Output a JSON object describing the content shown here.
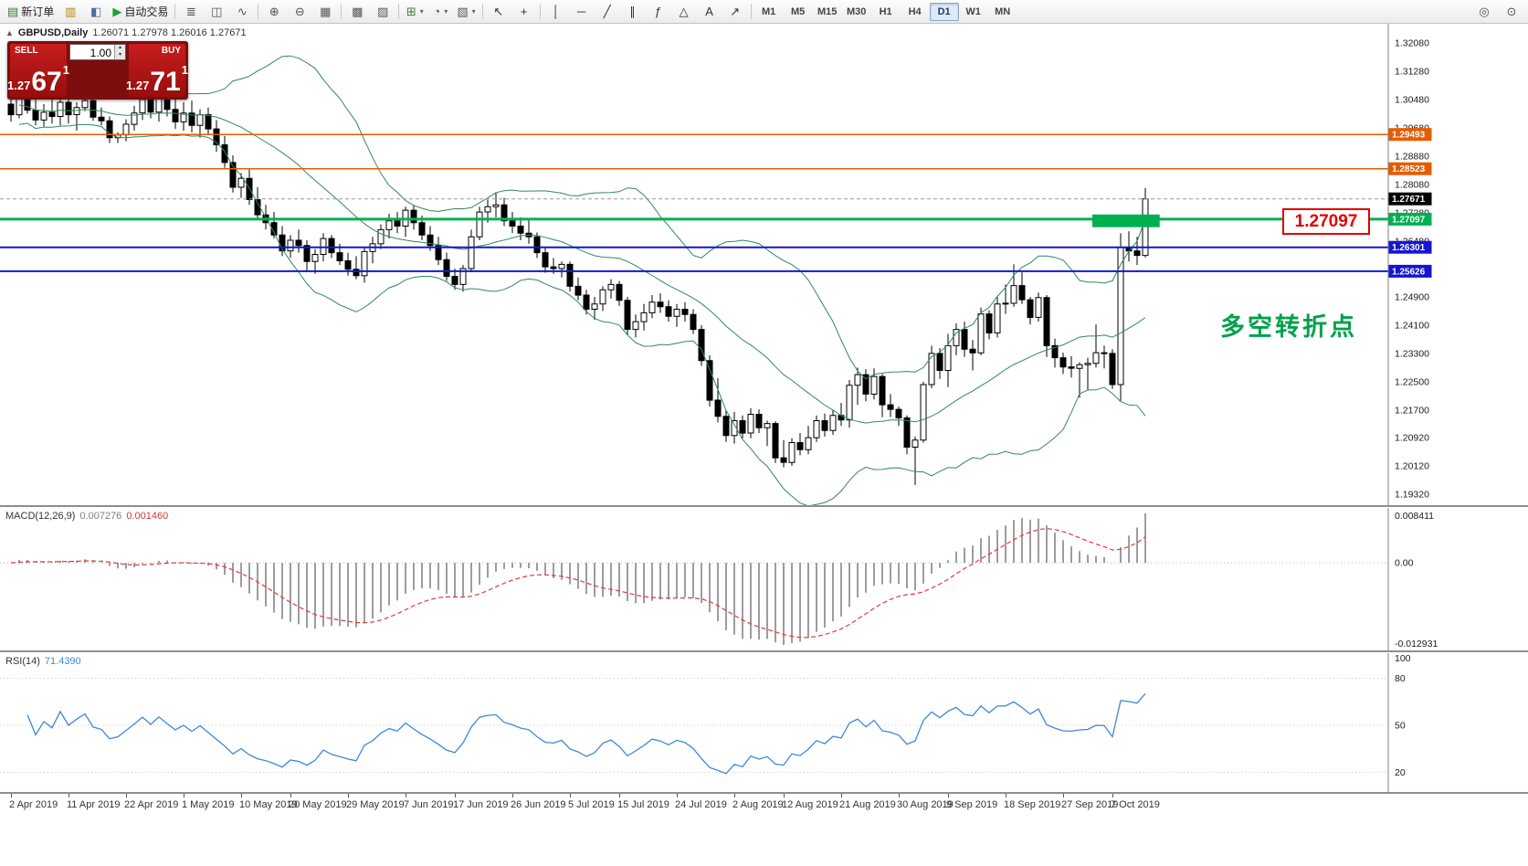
{
  "toolbar": {
    "items": [
      {
        "name": "new-order-button",
        "glyph": "▤",
        "label": "新订单",
        "color": "#2f7d32"
      },
      {
        "name": "chart-window-icon",
        "glyph": "▥",
        "color": "#b8860b"
      },
      {
        "name": "profiles-icon",
        "glyph": "◧",
        "color": "#4a6fa5"
      },
      {
        "name": "autotrading-button",
        "glyph": "▶",
        "label": "自动交易",
        "color": "#1d9e33"
      },
      {
        "divider": true
      },
      {
        "name": "bar-chart-icon",
        "glyph": "≣",
        "color": "#555555"
      },
      {
        "name": "candlestick-chart-icon",
        "glyph": "◫",
        "color": "#555555"
      },
      {
        "name": "line-chart-icon",
        "glyph": "∿",
        "color": "#555555"
      },
      {
        "divider": true
      },
      {
        "name": "zoom-in-icon",
        "glyph": "⊕",
        "color": "#555555"
      },
      {
        "name": "zoom-out-icon",
        "glyph": "⊖",
        "color": "#555555"
      },
      {
        "name": "tile-windows-icon",
        "glyph": "▦",
        "color": "#555555"
      },
      {
        "divider": true
      },
      {
        "name": "arrange-windows-icon",
        "glyph": "▩",
        "color": "#555555"
      },
      {
        "name": "cascade-windows-icon",
        "glyph": "▨",
        "color": "#555555"
      },
      {
        "divider": true
      },
      {
        "name": "indicators-button",
        "glyph": "⊞",
        "color": "#3a7d44",
        "dropdown": true
      },
      {
        "name": "periods-button",
        "glyph": "◔",
        "color": "#555555",
        "dropdown": true
      },
      {
        "name": "templates-button",
        "glyph": "▧",
        "color": "#555555",
        "dropdown": true
      },
      {
        "divider": true
      },
      {
        "name": "cursor-icon",
        "glyph": "↖",
        "color": "#333333"
      },
      {
        "name": "crosshair-icon",
        "glyph": "+",
        "color": "#333333"
      },
      {
        "divider": true
      },
      {
        "name": "vertical-line-icon",
        "glyph": "│",
        "color": "#333333"
      },
      {
        "name": "horizontal-line-icon",
        "glyph": "─",
        "color": "#333333"
      },
      {
        "name": "trendline-icon",
        "glyph": "╱",
        "color": "#333333"
      },
      {
        "name": "channel-icon",
        "glyph": "∥",
        "color": "#333333"
      },
      {
        "name": "fibonacci-icon",
        "glyph": "ƒ",
        "color": "#333333"
      },
      {
        "name": "shapes-icon",
        "glyph": "△",
        "color": "#333333"
      },
      {
        "name": "text-icon",
        "glyph": "A",
        "color": "#333333"
      },
      {
        "name": "arrow-tool-icon",
        "glyph": "↗",
        "color": "#333333"
      },
      {
        "divider": true
      }
    ],
    "timeframes": [
      "M1",
      "M5",
      "M15",
      "M30",
      "H1",
      "H4",
      "D1",
      "W1",
      "MN"
    ],
    "active_timeframe": "D1",
    "right_items": [
      {
        "name": "search-icon",
        "glyph": "◎",
        "color": "#555555"
      },
      {
        "name": "data-window-icon",
        "glyph": "⊙",
        "color": "#555555"
      }
    ]
  },
  "chart": {
    "title": "GBPUSD,Daily",
    "ohlc_text": "1.26071 1.27978 1.26016 1.27671",
    "trade_panel": {
      "sell_label": "SELL",
      "buy_label": "BUY",
      "volume": "1.00",
      "sell_price_head": "1.27",
      "sell_price_big": "67",
      "sell_price_sup": "1",
      "buy_price_head": "1.27",
      "buy_price_big": "71",
      "buy_price_sup": "1"
    },
    "annotation": "多空转折点",
    "price_box": "1.27097",
    "levels": [
      {
        "label": "1.29493",
        "price": 1.29493,
        "color": "#e65c00",
        "width": 1.5,
        "style": "solid"
      },
      {
        "label": "1.28523",
        "price": 1.28523,
        "color": "#e65c00",
        "width": 1.5,
        "style": "solid"
      },
      {
        "label": "1.27671",
        "price": 1.27671,
        "color": "#000000",
        "line_color": "#999999",
        "width": 1,
        "style": "dashed"
      },
      {
        "label": "1.27097",
        "price": 1.27097,
        "color": "#00b050",
        "width": 3,
        "style": "solid"
      },
      {
        "label": "1.26301",
        "price": 1.26301,
        "color": "#1616d1",
        "width": 2,
        "style": "solid"
      },
      {
        "label": "1.25626",
        "price": 1.25626,
        "color": "#1616d1",
        "width": 2,
        "style": "solid"
      }
    ],
    "zone": {
      "from_index": 132,
      "to_index": 139.3,
      "price_top": 1.2723,
      "price_bottom": 1.2687,
      "color": "#00b050"
    },
    "y_ticks": [
      "1.32080",
      "1.31280",
      "1.30480",
      "1.29680",
      "1.28880",
      "1.28080",
      "1.27280",
      "1.26480",
      "1.25680",
      "1.24900",
      "1.24100",
      "1.23300",
      "1.22500",
      "1.21700",
      "1.20920",
      "1.20120",
      "1.19320"
    ]
  },
  "macd": {
    "name": "MACD(12,26,9)",
    "value_main": "0.007276",
    "value_signal": "0.001460",
    "axis": [
      "0.008411",
      "0.00",
      "-0.012931"
    ]
  },
  "rsi": {
    "name": "RSI(14)",
    "value": "71.4390",
    "axis": [
      "100",
      "80",
      "50",
      "20"
    ],
    "levels": [
      80,
      50,
      20
    ]
  },
  "chart_data": {
    "type": "candlestick",
    "symbol": "GBPUSD",
    "timeframe": "Daily",
    "y_axis": {
      "min": 1.1932,
      "max": 1.3208
    },
    "indicators": [
      {
        "name": "Bollinger Bands",
        "params": [
          20,
          2
        ],
        "color": "#2e8b57"
      },
      {
        "name": "MACD",
        "params": [
          12,
          26,
          9
        ],
        "histogram_color": "#9d9d9d",
        "signal_color": "#e23a3a"
      },
      {
        "name": "RSI",
        "params": [
          14
        ],
        "color": "#3f87d9"
      }
    ],
    "date_ticks": [
      {
        "label": "2 Apr 2019",
        "i": 0
      },
      {
        "label": "11 Apr 2019",
        "i": 7
      },
      {
        "label": "22 Apr 2019",
        "i": 14
      },
      {
        "label": "1 May 2019",
        "i": 21
      },
      {
        "label": "10 May 2019",
        "i": 28
      },
      {
        "label": "20 May 2019",
        "i": 34
      },
      {
        "label": "29 May 2019",
        "i": 41
      },
      {
        "label": "7 Jun 2019",
        "i": 48
      },
      {
        "label": "17 Jun 2019",
        "i": 54
      },
      {
        "label": "26 Jun 2019",
        "i": 61
      },
      {
        "label": "5 Jul 2019",
        "i": 68
      },
      {
        "label": "15 Jul 2019",
        "i": 74
      },
      {
        "label": "24 Jul 2019",
        "i": 81
      },
      {
        "label": "2 Aug 2019",
        "i": 88
      },
      {
        "label": "12 Aug 2019",
        "i": 94
      },
      {
        "label": "21 Aug 2019",
        "i": 101
      },
      {
        "label": "30 Aug 2019",
        "i": 108
      },
      {
        "label": "9 Sep 2019",
        "i": 114
      },
      {
        "label": "18 Sep 2019",
        "i": 121
      },
      {
        "label": "27 Sep 2019",
        "i": 128
      },
      {
        "label": "7 Oct 2019",
        "i": 134
      }
    ],
    "candles": [
      [
        1.3035,
        1.3075,
        1.2985,
        1.3005
      ],
      [
        1.3005,
        1.3085,
        1.2995,
        1.306
      ],
      [
        1.306,
        1.3078,
        1.3008,
        1.3018
      ],
      [
        1.3018,
        1.3052,
        1.2975,
        1.299
      ],
      [
        1.299,
        1.3035,
        1.2972,
        1.3012
      ],
      [
        1.3012,
        1.306,
        1.298,
        1.3
      ],
      [
        1.3,
        1.3055,
        1.2975,
        1.304
      ],
      [
        1.304,
        1.306,
        1.298,
        1.3005
      ],
      [
        1.3005,
        1.304,
        1.296,
        1.3025
      ],
      [
        1.3025,
        1.3065,
        1.3015,
        1.3045
      ],
      [
        1.3045,
        1.3058,
        1.2988,
        1.2998
      ],
      [
        1.2998,
        1.3025,
        1.2975,
        1.2988
      ],
      [
        1.2988,
        1.3,
        1.2925,
        1.294
      ],
      [
        1.294,
        1.2955,
        1.2925,
        1.2948
      ],
      [
        1.2948,
        1.2992,
        1.293,
        1.2978
      ],
      [
        1.2978,
        1.303,
        1.296,
        1.301
      ],
      [
        1.301,
        1.3065,
        1.299,
        1.3048
      ],
      [
        1.3048,
        1.3076,
        1.2995,
        1.3012
      ],
      [
        1.3012,
        1.307,
        1.2985,
        1.3055
      ],
      [
        1.3055,
        1.3068,
        1.3,
        1.302
      ],
      [
        1.302,
        1.3048,
        1.2965,
        1.2985
      ],
      [
        1.2985,
        1.304,
        1.296,
        1.301
      ],
      [
        1.301,
        1.3045,
        1.2955,
        1.2975
      ],
      [
        1.2975,
        1.302,
        1.294,
        1.3005
      ],
      [
        1.3005,
        1.3025,
        1.295,
        1.2965
      ],
      [
        1.2965,
        1.299,
        1.29,
        1.292
      ],
      [
        1.292,
        1.2945,
        1.2855,
        1.287
      ],
      [
        1.287,
        1.289,
        1.2785,
        1.28
      ],
      [
        1.28,
        1.284,
        1.277,
        1.2825
      ],
      [
        1.2825,
        1.285,
        1.275,
        1.2765
      ],
      [
        1.2765,
        1.28,
        1.271,
        1.2722
      ],
      [
        1.2722,
        1.275,
        1.268,
        1.27
      ],
      [
        1.27,
        1.273,
        1.2655,
        1.2665
      ],
      [
        1.2665,
        1.269,
        1.2605,
        1.262
      ],
      [
        1.262,
        1.2665,
        1.26,
        1.265
      ],
      [
        1.265,
        1.268,
        1.2615,
        1.2635
      ],
      [
        1.2635,
        1.265,
        1.256,
        1.259
      ],
      [
        1.259,
        1.2625,
        1.2555,
        1.261
      ],
      [
        1.261,
        1.267,
        1.259,
        1.2655
      ],
      [
        1.2655,
        1.2665,
        1.26,
        1.2615
      ],
      [
        1.2615,
        1.264,
        1.258,
        1.2592
      ],
      [
        1.2592,
        1.2615,
        1.255,
        1.2568
      ],
      [
        1.2568,
        1.2605,
        1.254,
        1.255
      ],
      [
        1.255,
        1.263,
        1.253,
        1.2618
      ],
      [
        1.2618,
        1.266,
        1.2585,
        1.264
      ],
      [
        1.264,
        1.2695,
        1.2625,
        1.268
      ],
      [
        1.268,
        1.2725,
        1.2655,
        1.2705
      ],
      [
        1.2705,
        1.273,
        1.267,
        1.269
      ],
      [
        1.269,
        1.2745,
        1.266,
        1.2735
      ],
      [
        1.2735,
        1.275,
        1.268,
        1.27
      ],
      [
        1.27,
        1.272,
        1.265,
        1.2665
      ],
      [
        1.2665,
        1.269,
        1.262,
        1.2635
      ],
      [
        1.2635,
        1.266,
        1.258,
        1.2595
      ],
      [
        1.2595,
        1.2615,
        1.2535,
        1.2548
      ],
      [
        1.2548,
        1.257,
        1.251,
        1.2525
      ],
      [
        1.2525,
        1.258,
        1.2505,
        1.257
      ],
      [
        1.257,
        1.268,
        1.256,
        1.266
      ],
      [
        1.266,
        1.2745,
        1.265,
        1.273
      ],
      [
        1.273,
        1.2765,
        1.27,
        1.2745
      ],
      [
        1.2745,
        1.2785,
        1.2715,
        1.275
      ],
      [
        1.275,
        1.277,
        1.269,
        1.2705
      ],
      [
        1.2705,
        1.273,
        1.267,
        1.269
      ],
      [
        1.269,
        1.2715,
        1.265,
        1.267
      ],
      [
        1.267,
        1.2712,
        1.264,
        1.266
      ],
      [
        1.266,
        1.2672,
        1.26,
        1.2615
      ],
      [
        1.2615,
        1.263,
        1.2558,
        1.2575
      ],
      [
        1.2575,
        1.26,
        1.2555,
        1.257
      ],
      [
        1.257,
        1.259,
        1.2545,
        1.2582
      ],
      [
        1.2582,
        1.259,
        1.2505,
        1.252
      ],
      [
        1.252,
        1.2545,
        1.248,
        1.2495
      ],
      [
        1.2495,
        1.251,
        1.244,
        1.2455
      ],
      [
        1.2455,
        1.249,
        1.2425,
        1.247
      ],
      [
        1.247,
        1.252,
        1.245,
        1.251
      ],
      [
        1.251,
        1.254,
        1.2485,
        1.2525
      ],
      [
        1.2525,
        1.2535,
        1.2465,
        1.248
      ],
      [
        1.248,
        1.249,
        1.2382,
        1.2398
      ],
      [
        1.2398,
        1.244,
        1.2375,
        1.242
      ],
      [
        1.242,
        1.247,
        1.2395,
        1.2445
      ],
      [
        1.2445,
        1.2495,
        1.243,
        1.2475
      ],
      [
        1.2475,
        1.25,
        1.2445,
        1.2462
      ],
      [
        1.2462,
        1.248,
        1.242,
        1.2435
      ],
      [
        1.2435,
        1.247,
        1.2405,
        1.2455
      ],
      [
        1.2455,
        1.2475,
        1.242,
        1.244
      ],
      [
        1.244,
        1.2455,
        1.2385,
        1.2398
      ],
      [
        1.2398,
        1.241,
        1.2295,
        1.231
      ],
      [
        1.231,
        1.2325,
        1.218,
        1.2198
      ],
      [
        1.2198,
        1.226,
        1.2135,
        1.2152
      ],
      [
        1.2152,
        1.217,
        1.208,
        1.2098
      ],
      [
        1.2098,
        1.2165,
        1.2075,
        1.214
      ],
      [
        1.214,
        1.2155,
        1.209,
        1.2105
      ],
      [
        1.2105,
        1.2175,
        1.209,
        1.2158
      ],
      [
        1.2158,
        1.2172,
        1.2105,
        1.212
      ],
      [
        1.212,
        1.214,
        1.2068,
        1.2132
      ],
      [
        1.2132,
        1.2138,
        1.202,
        1.2035
      ],
      [
        1.2035,
        1.2085,
        1.2008,
        1.2022
      ],
      [
        1.2022,
        1.209,
        1.2012,
        1.2078
      ],
      [
        1.2078,
        1.2105,
        1.2042,
        1.2058
      ],
      [
        1.2058,
        1.2125,
        1.2045,
        1.2092
      ],
      [
        1.2092,
        1.2155,
        1.208,
        1.214
      ],
      [
        1.214,
        1.216,
        1.2095,
        1.2112
      ],
      [
        1.2112,
        1.217,
        1.21,
        1.2155
      ],
      [
        1.2155,
        1.219,
        1.2125,
        1.2142
      ],
      [
        1.2142,
        1.2255,
        1.212,
        1.224
      ],
      [
        1.224,
        1.229,
        1.2185,
        1.227
      ],
      [
        1.227,
        1.2285,
        1.2195,
        1.2215
      ],
      [
        1.2215,
        1.2288,
        1.22,
        1.2265
      ],
      [
        1.2265,
        1.2272,
        1.215,
        1.2185
      ],
      [
        1.2185,
        1.2215,
        1.215,
        1.2172
      ],
      [
        1.2172,
        1.218,
        1.2125,
        1.2148
      ],
      [
        1.2148,
        1.2155,
        1.2045,
        1.2065
      ],
      [
        1.2065,
        1.2095,
        1.1958,
        1.2085
      ],
      [
        1.2085,
        1.225,
        1.2078,
        1.2242
      ],
      [
        1.2242,
        1.2352,
        1.2232,
        1.233
      ],
      [
        1.233,
        1.2345,
        1.2258,
        1.2282
      ],
      [
        1.2282,
        1.2385,
        1.2235,
        1.2352
      ],
      [
        1.2352,
        1.2415,
        1.2325,
        1.2398
      ],
      [
        1.2398,
        1.242,
        1.232,
        1.2342
      ],
      [
        1.2342,
        1.2368,
        1.2282,
        1.2332
      ],
      [
        1.2332,
        1.246,
        1.2325,
        1.2442
      ],
      [
        1.2442,
        1.2452,
        1.237,
        1.2388
      ],
      [
        1.2388,
        1.249,
        1.2375,
        1.247
      ],
      [
        1.247,
        1.2525,
        1.2442,
        1.2472
      ],
      [
        1.2472,
        1.2582,
        1.2462,
        1.2522
      ],
      [
        1.2522,
        1.256,
        1.247,
        1.2482
      ],
      [
        1.2482,
        1.249,
        1.2412,
        1.2432
      ],
      [
        1.2432,
        1.2502,
        1.242,
        1.2488
      ],
      [
        1.2488,
        1.2495,
        1.232,
        1.2352
      ],
      [
        1.2352,
        1.2372,
        1.229,
        1.2318
      ],
      [
        1.2318,
        1.2332,
        1.2272,
        1.2292
      ],
      [
        1.2292,
        1.2322,
        1.2262,
        1.2288
      ],
      [
        1.2288,
        1.2305,
        1.2205,
        1.2298
      ],
      [
        1.2298,
        1.2318,
        1.2228,
        1.2302
      ],
      [
        1.2302,
        1.2412,
        1.229,
        1.2332
      ],
      [
        1.2332,
        1.2352,
        1.2288,
        1.233
      ],
      [
        1.233,
        1.2342,
        1.223,
        1.2242
      ],
      [
        1.2242,
        1.267,
        1.2196,
        1.263
      ],
      [
        1.263,
        1.2675,
        1.259,
        1.262
      ],
      [
        1.262,
        1.266,
        1.258,
        1.26071
      ],
      [
        1.26071,
        1.27978,
        1.26016,
        1.27671
      ]
    ]
  }
}
